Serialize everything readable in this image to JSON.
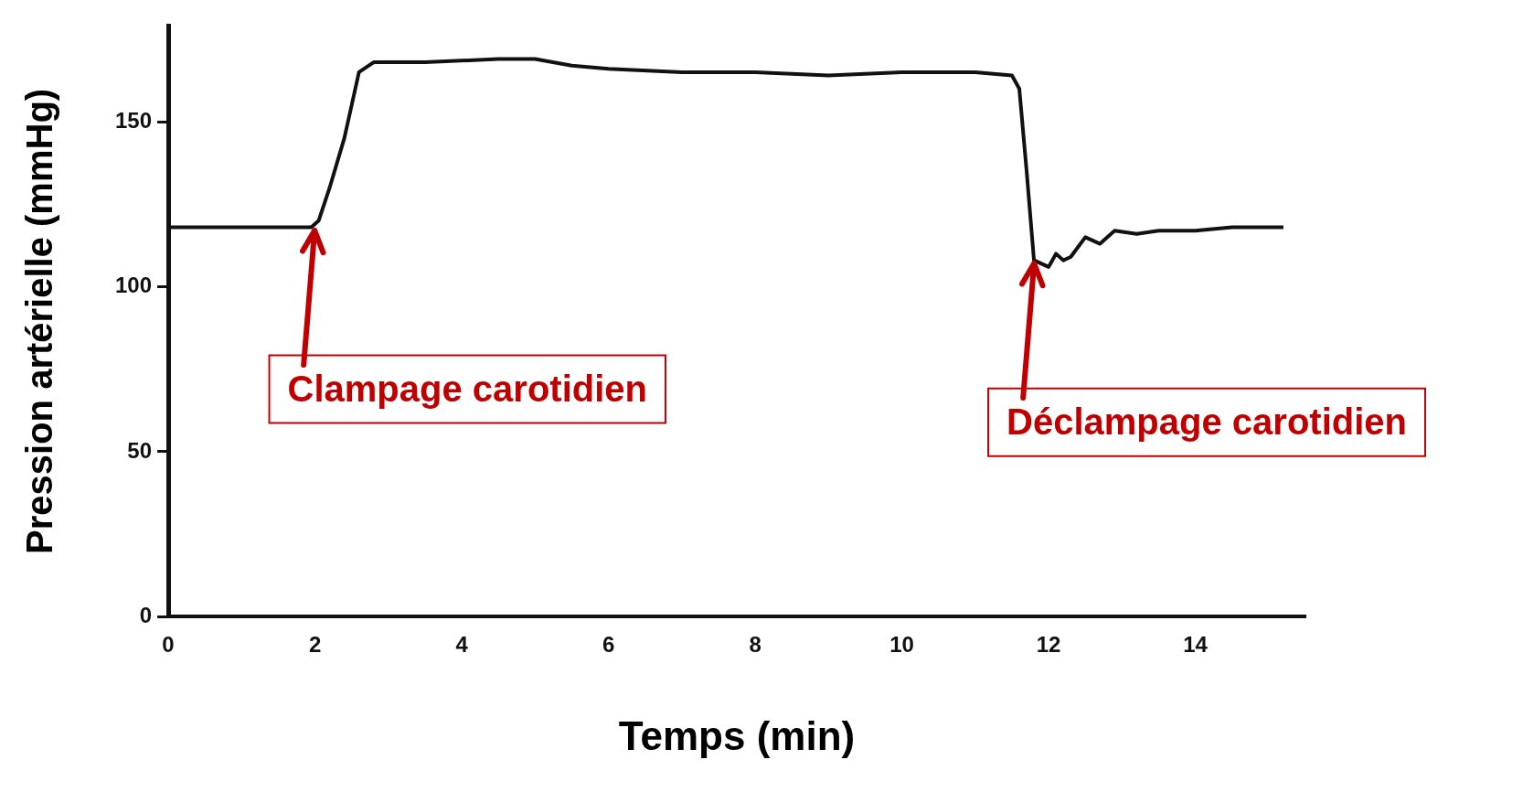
{
  "chart_data": {
    "type": "line",
    "xlabel": "Temps (min)",
    "ylabel": "Pression artérielle (mmHg)",
    "x": [
      0,
      0.5,
      1,
      1.5,
      1.95,
      2.05,
      2.2,
      2.4,
      2.6,
      2.8,
      3.5,
      4.5,
      5,
      5.5,
      6,
      7,
      8,
      9,
      10,
      11,
      11.5,
      11.6,
      11.7,
      11.8,
      12,
      12.1,
      12.2,
      12.3,
      12.5,
      12.7,
      12.9,
      13.2,
      13.5,
      14,
      14.5,
      15.2
    ],
    "series": [
      {
        "color": "#111111",
        "values": [
          118,
          118,
          118,
          118,
          118,
          120,
          130,
          145,
          165,
          168,
          168,
          169,
          169,
          167,
          166,
          165,
          165,
          164,
          165,
          165,
          164,
          160,
          135,
          108,
          106,
          110,
          108,
          109,
          115,
          113,
          117,
          116,
          117,
          117,
          118,
          118
        ]
      }
    ],
    "xlim": [
      0,
      15.5
    ],
    "ylim": [
      0,
      179
    ],
    "xticks": [
      0,
      2,
      4,
      6,
      8,
      10,
      12,
      14
    ],
    "yticks": [
      0,
      50,
      100,
      150
    ],
    "grid": false,
    "legend": false,
    "marker": "none",
    "line_style": "solid",
    "annotations": [
      {
        "text": "Clampage carotidien",
        "x": 2,
        "y": 118
      },
      {
        "text": "Déclampage carotidien",
        "x": 11.8,
        "y": 108
      }
    ]
  }
}
